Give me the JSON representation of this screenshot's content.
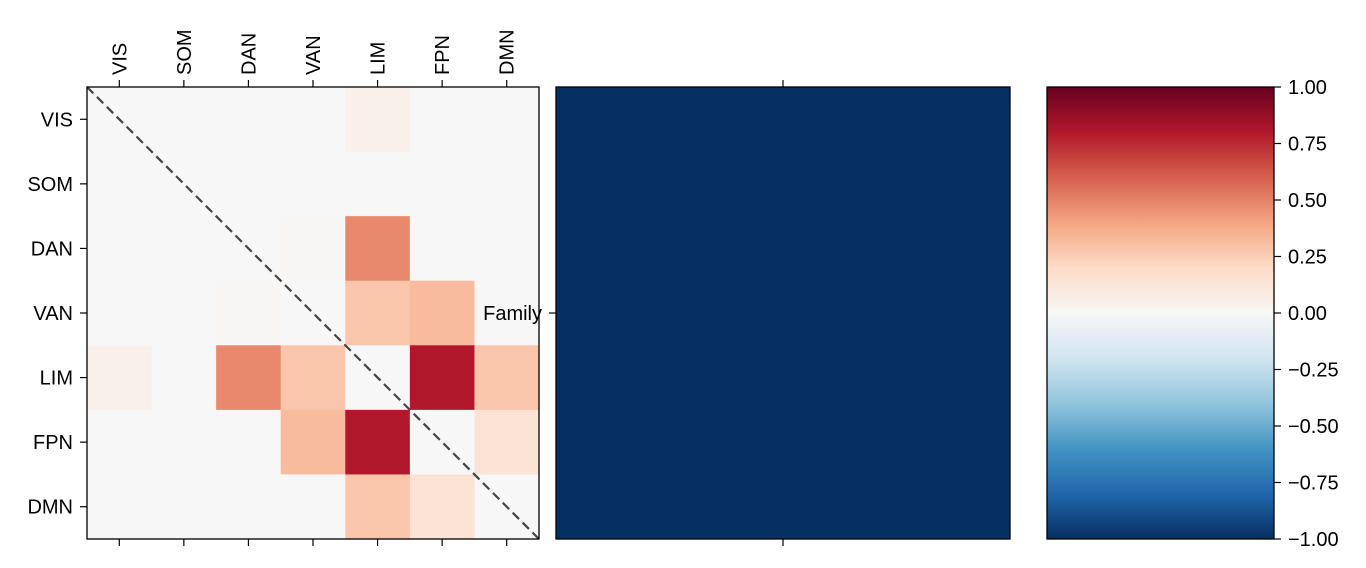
{
  "chart_data": [
    {
      "type": "heatmap",
      "title": "",
      "x_tick_labels": [
        "VIS",
        "SOM",
        "DAN",
        "VAN",
        "LIM",
        "FPN",
        "DMN"
      ],
      "y_tick_labels": [
        "VIS",
        "SOM",
        "DAN",
        "VAN",
        "LIM",
        "FPN",
        "DMN"
      ],
      "x_ticks_position": "top",
      "x_tick_rotation": 90,
      "diagonal_line": "dashed",
      "matrix": [
        [
          0.0,
          0.0,
          0.0,
          0.0,
          0.05,
          0.0,
          0.0
        ],
        [
          0.0,
          0.0,
          0.0,
          0.0,
          0.0,
          0.0,
          0.0
        ],
        [
          0.0,
          0.0,
          0.0,
          0.01,
          0.48,
          0.0,
          0.0
        ],
        [
          0.0,
          0.0,
          0.01,
          0.0,
          0.28,
          0.32,
          0.0
        ],
        [
          0.05,
          0.0,
          0.48,
          0.28,
          0.0,
          0.8,
          0.28
        ],
        [
          0.0,
          0.0,
          0.0,
          0.32,
          0.8,
          0.0,
          0.14
        ],
        [
          0.0,
          0.0,
          0.0,
          0.0,
          0.28,
          0.14,
          0.0
        ]
      ],
      "vmin": -1.0,
      "vmax": 1.0
    },
    {
      "type": "heatmap",
      "title": "",
      "y_tick_labels": [
        "Family"
      ],
      "x_tick_labels": [
        ""
      ],
      "matrix": [
        [
          -1.0
        ]
      ],
      "vmin": -1.0,
      "vmax": 1.0
    }
  ],
  "colorbar": {
    "colormap": "RdBu_r",
    "range": [
      -1.0,
      1.0
    ],
    "ticks": [
      1.0,
      0.75,
      0.5,
      0.25,
      0.0,
      -0.25,
      -0.5,
      -0.75,
      -1.0
    ],
    "tick_labels": [
      "1.00",
      "0.75",
      "0.50",
      "0.25",
      "0.00",
      "−0.25",
      "−0.50",
      "−0.75",
      "−1.00"
    ],
    "position": "right"
  },
  "colors": {
    "rdbu": [
      "#67001f",
      "#b2182b",
      "#d6604d",
      "#f4a582",
      "#fddbc7",
      "#f7f7f7",
      "#d1e5f0",
      "#92c5de",
      "#4393c3",
      "#2166ac",
      "#053061"
    ]
  }
}
